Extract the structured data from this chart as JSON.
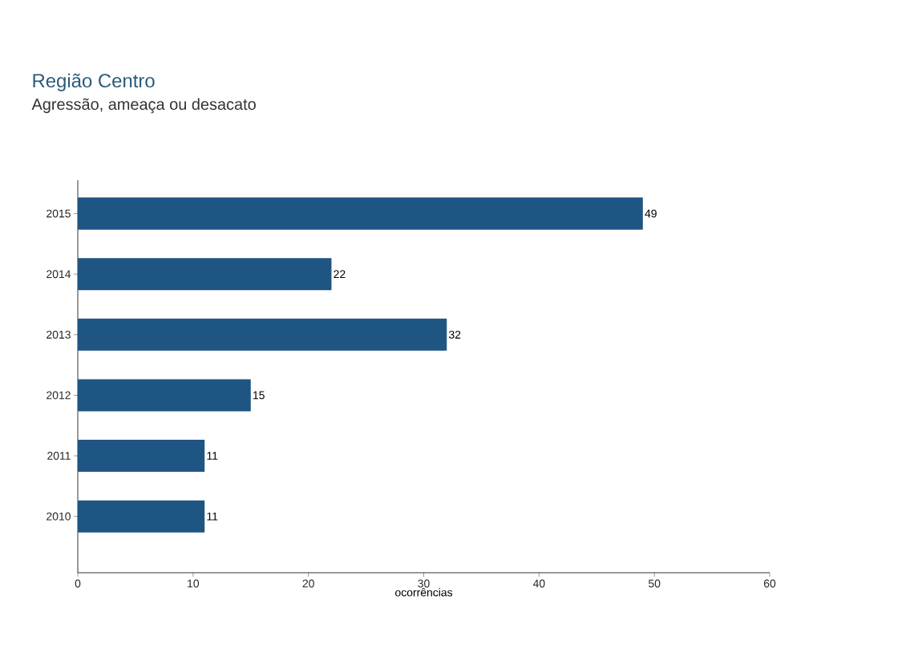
{
  "chart_data": {
    "type": "bar",
    "orientation": "horizontal",
    "title": "Região Centro",
    "subtitle": "Agressão, ameaça ou desacato",
    "xlabel": "ocorrências",
    "categories": [
      "2015",
      "2014",
      "2013",
      "2012",
      "2011",
      "2010"
    ],
    "values": [
      49,
      22,
      32,
      15,
      11,
      11
    ],
    "color": "#1f5582",
    "xlim": [
      0,
      60
    ],
    "xticks": [
      0,
      10,
      20,
      30,
      40,
      50,
      60
    ],
    "data_labels": true,
    "grid": false
  }
}
